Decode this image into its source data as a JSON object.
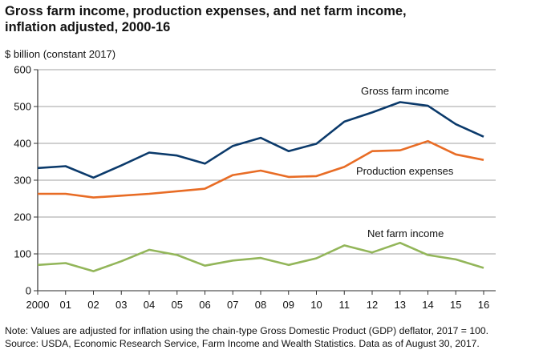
{
  "chart_data": {
    "type": "line",
    "title": "Gross farm income, production expenses, and net farm income, inflation adjusted, 2000-16",
    "title_lines": [
      "Gross farm income, production expenses, and net farm income,",
      "inflation adjusted, 2000-16"
    ],
    "ylabel": "$ billion (constant 2017)",
    "xlabel": "",
    "ylim": [
      0,
      600
    ],
    "yticks": [
      0,
      100,
      200,
      300,
      400,
      500,
      600
    ],
    "categories": [
      "2000",
      "01",
      "02",
      "03",
      "04",
      "05",
      "06",
      "07",
      "08",
      "09",
      "10",
      "11",
      "12",
      "13",
      "14",
      "15",
      "16"
    ],
    "grid": true,
    "series": [
      {
        "name": "Gross farm income",
        "color": "#0b3a6b",
        "values": [
          333,
          338,
          307,
          340,
          375,
          367,
          345,
          393,
          415,
          379,
          399,
          459,
          484,
          512,
          502,
          452,
          418
        ]
      },
      {
        "name": "Production expenses",
        "color": "#e86c25",
        "values": [
          263,
          263,
          253,
          258,
          263,
          270,
          277,
          314,
          326,
          309,
          311,
          336,
          379,
          381,
          406,
          370,
          355
        ]
      },
      {
        "name": "Net farm income",
        "color": "#93b65a",
        "values": [
          70,
          75,
          53,
          80,
          111,
          97,
          68,
          82,
          89,
          70,
          88,
          123,
          104,
          130,
          97,
          85,
          62
        ]
      }
    ]
  },
  "notes": {
    "note": "Note: Values are adjusted for inflation using the chain-type Gross Domestic Product (GDP) deflator, 2017 = 100.",
    "source": "Source: USDA, Economic Research Service, Farm Income and Wealth Statistics. Data as of August 30, 2017."
  }
}
